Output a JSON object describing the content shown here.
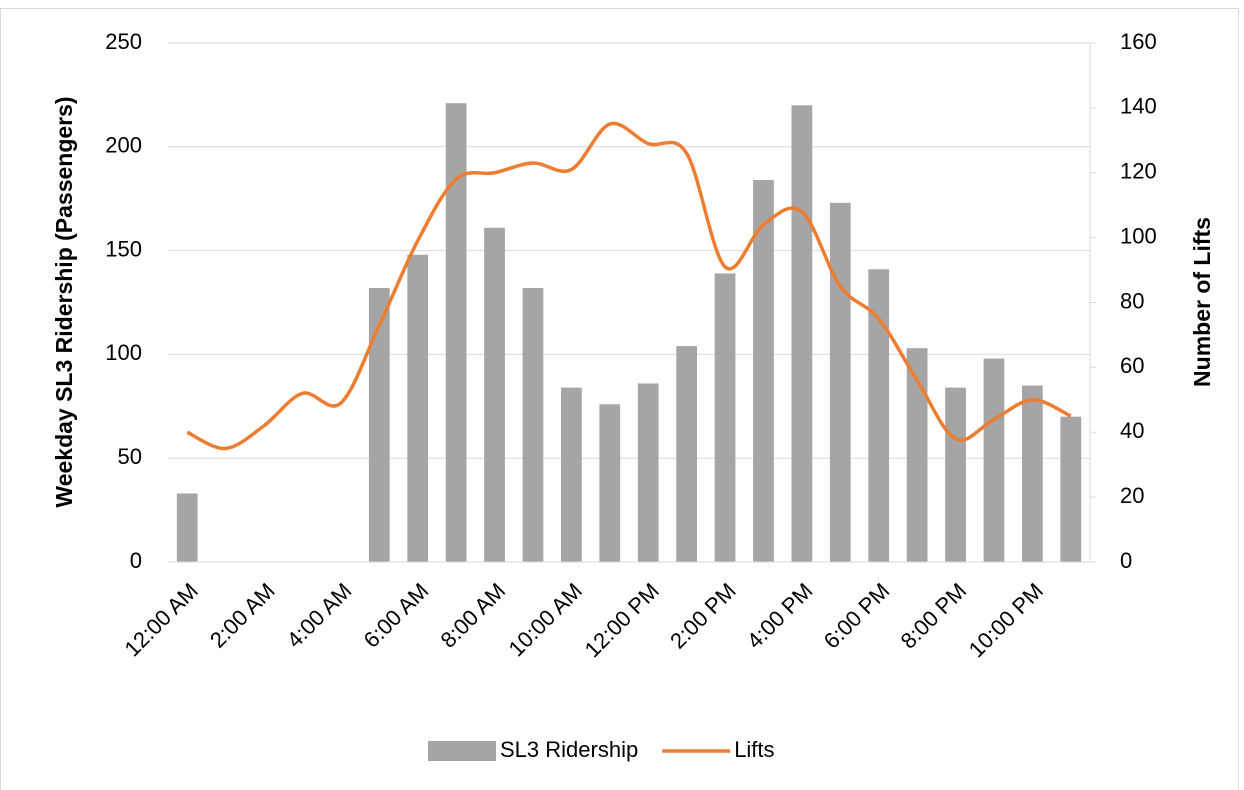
{
  "chart_data": {
    "type": "bar_line",
    "categories": [
      "12:00 AM",
      null,
      "2:00 AM",
      null,
      "4:00 AM",
      null,
      "6:00 AM",
      null,
      "8:00 AM",
      null,
      "10:00 AM",
      null,
      "12:00 PM",
      null,
      "2:00 PM",
      null,
      "4:00 PM",
      null,
      "6:00 PM",
      null,
      "8:00 PM",
      null,
      "10:00 PM",
      null
    ],
    "series": [
      {
        "name": "SL3 Ridership",
        "color": "#a5a5a5",
        "type": "bar",
        "values": [
          33,
          0,
          0,
          0,
          0,
          132,
          148,
          221,
          161,
          132,
          84,
          76,
          86,
          104,
          139,
          184,
          220,
          173,
          141,
          103,
          84,
          98,
          85,
          70
        ]
      },
      {
        "name": "Lifts",
        "color": "#ed7d31",
        "type": "line",
        "axis": "y2",
        "values": [
          40,
          35,
          42,
          52,
          49,
          73,
          99,
          118,
          120,
          123,
          121,
          135,
          129,
          126,
          91,
          104,
          108,
          85,
          75,
          56,
          38,
          44,
          50,
          45
        ]
      }
    ],
    "ylabel": "Weekday SL3 Ridership (Passengers)",
    "y2label": "Number of Lifts",
    "ylim": [
      0,
      250
    ],
    "yticks": [
      0,
      50,
      100,
      150,
      200,
      250
    ],
    "y2lim": [
      0,
      160
    ],
    "y2ticks": [
      0,
      20,
      40,
      60,
      80,
      100,
      120,
      140,
      160
    ],
    "grid": true,
    "legend": "bottom"
  }
}
